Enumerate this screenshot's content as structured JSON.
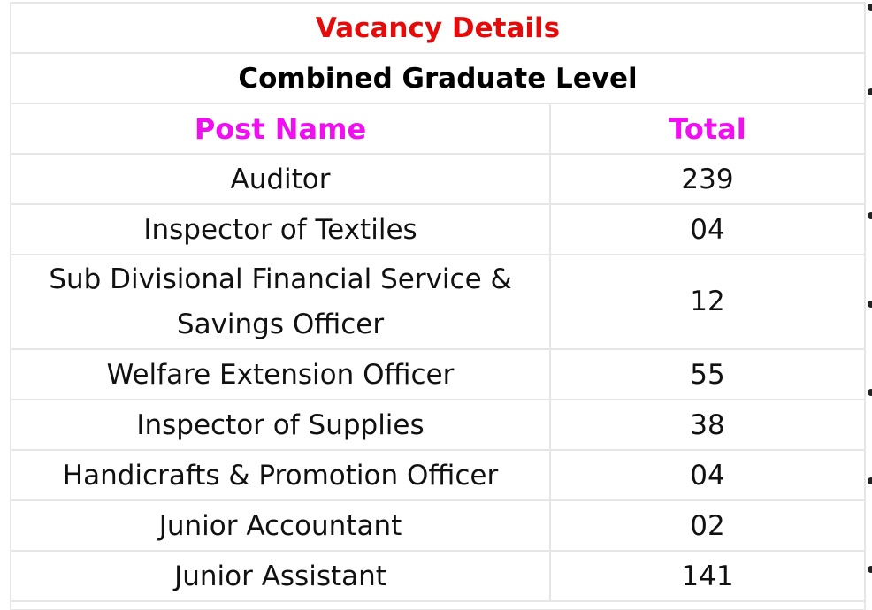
{
  "table": {
    "title": "Vacancy Details",
    "subtitle": "Combined Graduate Level",
    "headers": {
      "post": "Post Name",
      "total": "Total"
    },
    "rows": [
      {
        "post": "Auditor",
        "total": "239"
      },
      {
        "post": "Inspector of Textiles",
        "total": "04"
      },
      {
        "post": "Sub Divisional Financial Service & Savings Officer",
        "total": "12"
      },
      {
        "post": "Welfare Extension Officer",
        "total": "55"
      },
      {
        "post": "Inspector of Supplies",
        "total": "38"
      },
      {
        "post": "Handicrafts & Promotion Officer",
        "total": "04"
      },
      {
        "post": "Junior Accountant",
        "total": "02"
      },
      {
        "post": "Junior Assistant",
        "total": "141"
      }
    ]
  },
  "colors": {
    "title": "#e60b0b",
    "header": "#f00ff0",
    "border": "#e6e6e6"
  }
}
